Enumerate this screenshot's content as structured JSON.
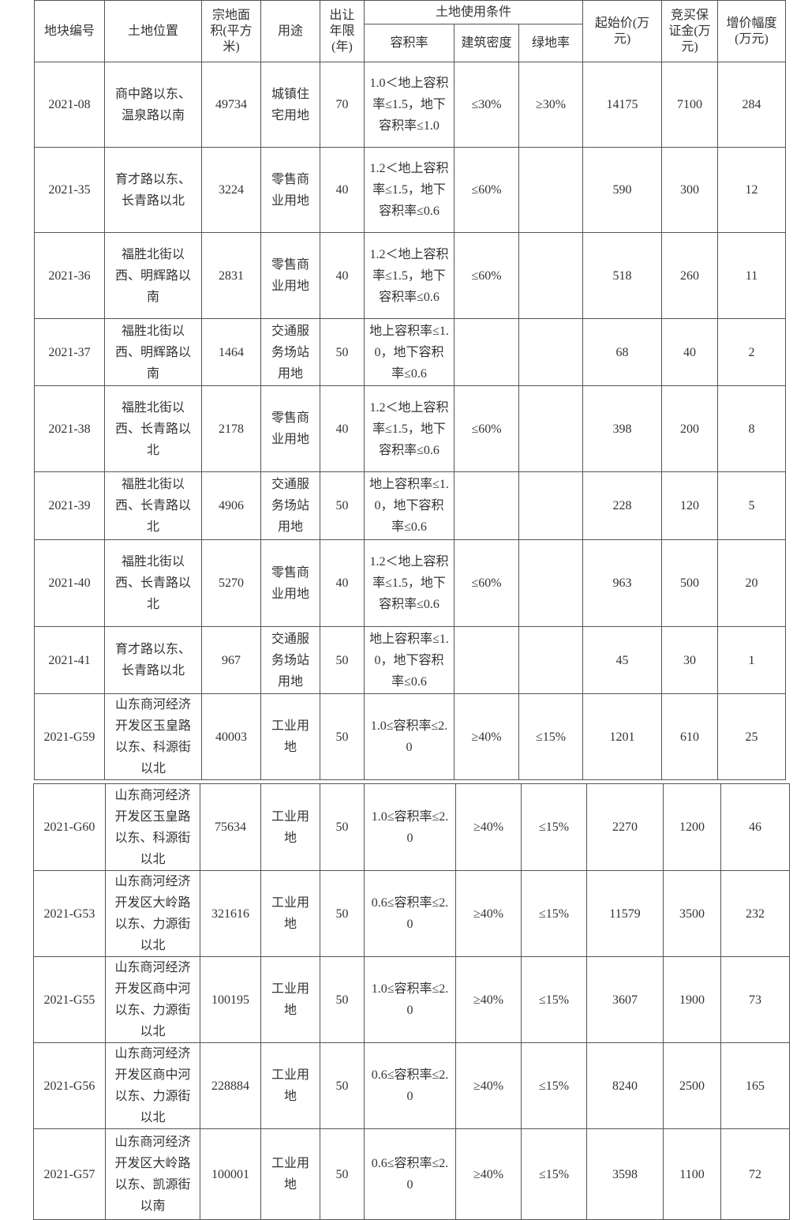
{
  "table": {
    "header": {
      "col_id": "地块编号",
      "location": "土地位置",
      "area": "宗地面积(平方米)",
      "use": "用途",
      "term": "出让年限(年)",
      "conditions": "土地使用条件",
      "far": "容积率",
      "density": "建筑密度",
      "green": "绿地率",
      "start_price": "起始价(万元)",
      "deposit": "竞买保证金(万元)",
      "increment": "增价幅度(万元)"
    },
    "rows": [
      [
        "2021-08",
        "商中路以东、温泉路以南",
        49734,
        "城镇住宅用地",
        70,
        "1.0＜地上容积率≤1.5，地下容积率≤1.0",
        "≤30%",
        "≥30%",
        14175,
        7100,
        284
      ],
      [
        "2021-35",
        "育才路以东、长青路以北",
        3224,
        "零售商业用地",
        40,
        "1.2＜地上容积率≤1.5，地下容积率≤0.6",
        "≤60%",
        null,
        590,
        300,
        12
      ],
      [
        "2021-36",
        "福胜北街以西、明辉路以南",
        2831,
        "零售商业用地",
        40,
        "1.2＜地上容积率≤1.5，地下容积率≤0.6",
        "≤60%",
        null,
        518,
        260,
        11
      ],
      [
        "2021-37",
        "福胜北街以西、明辉路以南",
        1464,
        "交通服务场站用地",
        50,
        "地上容积率≤1.0，地下容积率≤0.6",
        null,
        null,
        68,
        40,
        2
      ],
      [
        "2021-38",
        "福胜北街以西、长青路以北",
        2178,
        "零售商业用地",
        40,
        "1.2＜地上容积率≤1.5，地下容积率≤0.6",
        "≤60%",
        null,
        398,
        200,
        8
      ],
      [
        "2021-39",
        "福胜北街以西、长青路以北",
        4906,
        "交通服务场站用地",
        50,
        "地上容积率≤1.0，地下容积率≤0.6",
        null,
        null,
        228,
        120,
        5
      ],
      [
        "2021-40",
        "福胜北街以西、长青路以北",
        5270,
        "零售商业用地",
        40,
        "1.2＜地上容积率≤1.5，地下容积率≤0.6",
        "≤60%",
        null,
        963,
        500,
        20
      ],
      [
        "2021-41",
        "育才路以东、长青路以北",
        967,
        "交通服务场站用地",
        50,
        "地上容积率≤1.0，地下容积率≤0.6",
        null,
        null,
        45,
        30,
        1
      ],
      [
        "2021-G59",
        "山东商河经济开发区玉皇路以东、科源街以北",
        40003,
        "工业用地",
        50,
        "1.0≤容积率≤2.0",
        "≥40%",
        "≤15%",
        1201,
        610,
        25
      ]
    ]
  },
  "table_continued": {
    "rows": [
      [
        "2021-G60",
        "山东商河经济开发区玉皇路以东、科源街以北",
        75634,
        "工业用地",
        50,
        "1.0≤容积率≤2.0",
        "≥40%",
        "≤15%",
        2270,
        1200,
        46
      ],
      [
        "2021-G53",
        "山东商河经济开发区大岭路以东、力源街以北",
        321616,
        "工业用地",
        50,
        "0.6≤容积率≤2.0",
        "≥40%",
        "≤15%",
        11579,
        3500,
        232
      ],
      [
        "2021-G55",
        "山东商河经济开发区商中河以东、力源街以北",
        100195,
        "工业用地",
        50,
        "1.0≤容积率≤2.0",
        "≥40%",
        "≤15%",
        3607,
        1900,
        73
      ],
      [
        "2021-G56",
        "山东商河经济开发区商中河以东、力源街以北",
        228884,
        "工业用地",
        50,
        "0.6≤容积率≤2.0",
        "≥40%",
        "≤15%",
        8240,
        2500,
        165
      ],
      [
        "2021-G57",
        "山东商河经济开发区大岭路以东、凯源街以南",
        100001,
        "工业用地",
        50,
        "0.6≤容积率≤2.0",
        "≥40%",
        "≤15%",
        3598,
        1100,
        72
      ]
    ]
  }
}
